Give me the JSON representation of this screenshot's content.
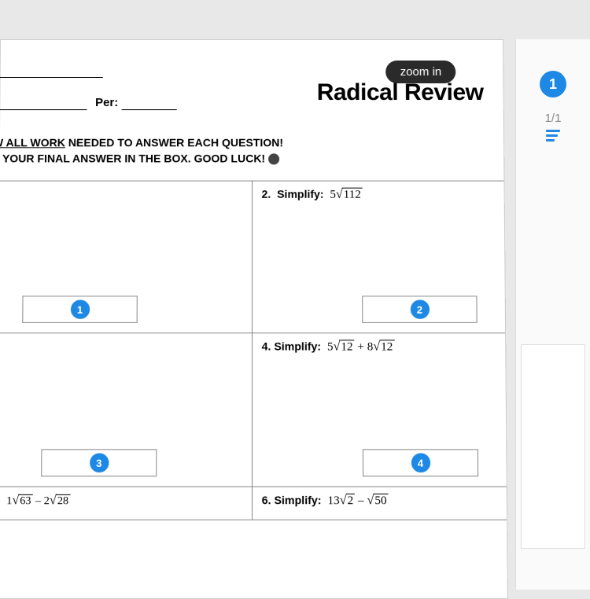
{
  "tooltip": "zoom in",
  "title": "Radical Review",
  "per_label": "Per:",
  "instructions": {
    "line1_underlined": "HOW ALL WORK",
    "line1_rest": " NEEDED TO ANSWER EACH QUESTION!",
    "line2": "ACE YOUR FINAL ANSWER IN THE BOX.  GOOD LUCK!"
  },
  "questions": {
    "q2": {
      "num": "2.",
      "label": "Simplify:",
      "coef": "5",
      "radicand": "112"
    },
    "q4": {
      "num": "4.",
      "label": "Simplify:",
      "coef1": "5",
      "rad1": "12",
      "op": "+",
      "coef2": "8",
      "rad2": "12"
    },
    "q5": {
      "coef1": "1",
      "rad1": "63",
      "op": "–",
      "coef2": "2",
      "rad2": "28"
    },
    "q6": {
      "num": "6.",
      "label": "Simplify:",
      "coef1": "13",
      "rad1": "2",
      "op": "–",
      "rad2": "50"
    }
  },
  "badges": {
    "b1": "1",
    "b2": "2",
    "b3": "3",
    "b4": "4"
  },
  "sidebar": {
    "page_badge": "1",
    "page_count": "1/1"
  },
  "colors": {
    "accent": "#1e88e5",
    "tooltip_bg": "#2a2a2a"
  }
}
